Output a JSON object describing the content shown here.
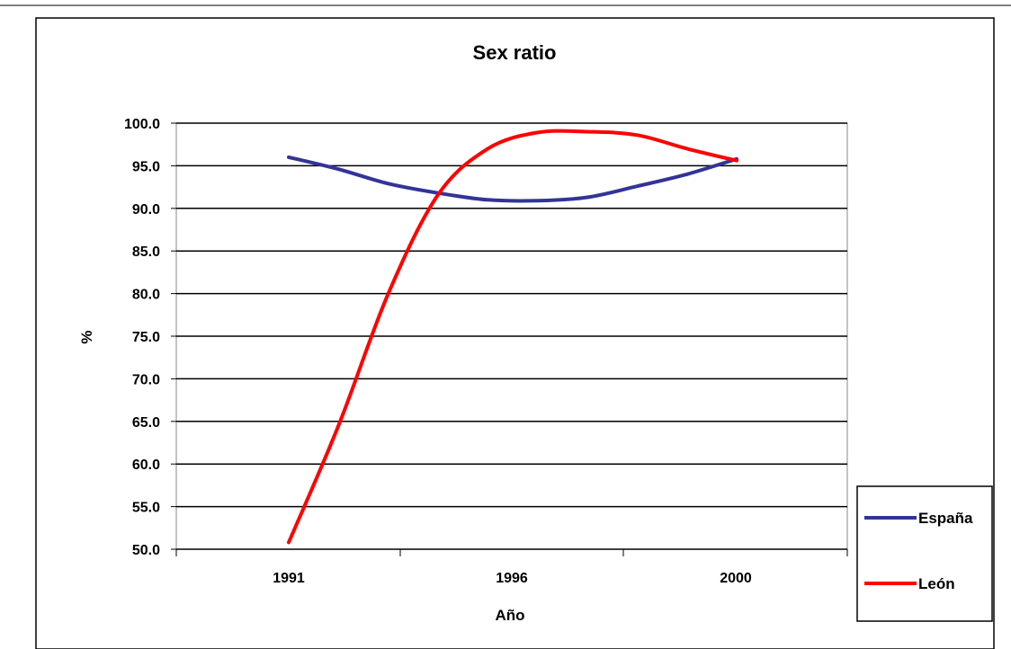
{
  "chart_data": {
    "type": "line",
    "title": "Sex ratio",
    "xlabel": "Año",
    "ylabel": "%",
    "categories": [
      "1991",
      "1996",
      "2000"
    ],
    "y_ticks": [
      "50.0",
      "55.0",
      "60.0",
      "65.0",
      "70.0",
      "75.0",
      "80.0",
      "85.0",
      "90.0",
      "95.0",
      "100.0"
    ],
    "ylim": [
      50,
      100
    ],
    "grid": true,
    "legend": "right",
    "smooth": true,
    "series": [
      {
        "name": "España",
        "color": "#333399",
        "x": [
          1991,
          1992,
          1993,
          1994,
          1995,
          1996,
          1997,
          1998,
          1999,
          2000
        ],
        "values": [
          96.0,
          94.6,
          92.9,
          91.8,
          91.0,
          90.9,
          91.3,
          92.6,
          94.0,
          95.8
        ]
      },
      {
        "name": "León",
        "color": "#ff0000",
        "x": [
          1991,
          1992,
          1993,
          1994,
          1995,
          1996,
          1997,
          1998,
          1999,
          2000
        ],
        "values": [
          50.8,
          64.5,
          80.0,
          91.6,
          97.0,
          98.9,
          99.0,
          98.6,
          97.0,
          95.6
        ]
      }
    ]
  }
}
